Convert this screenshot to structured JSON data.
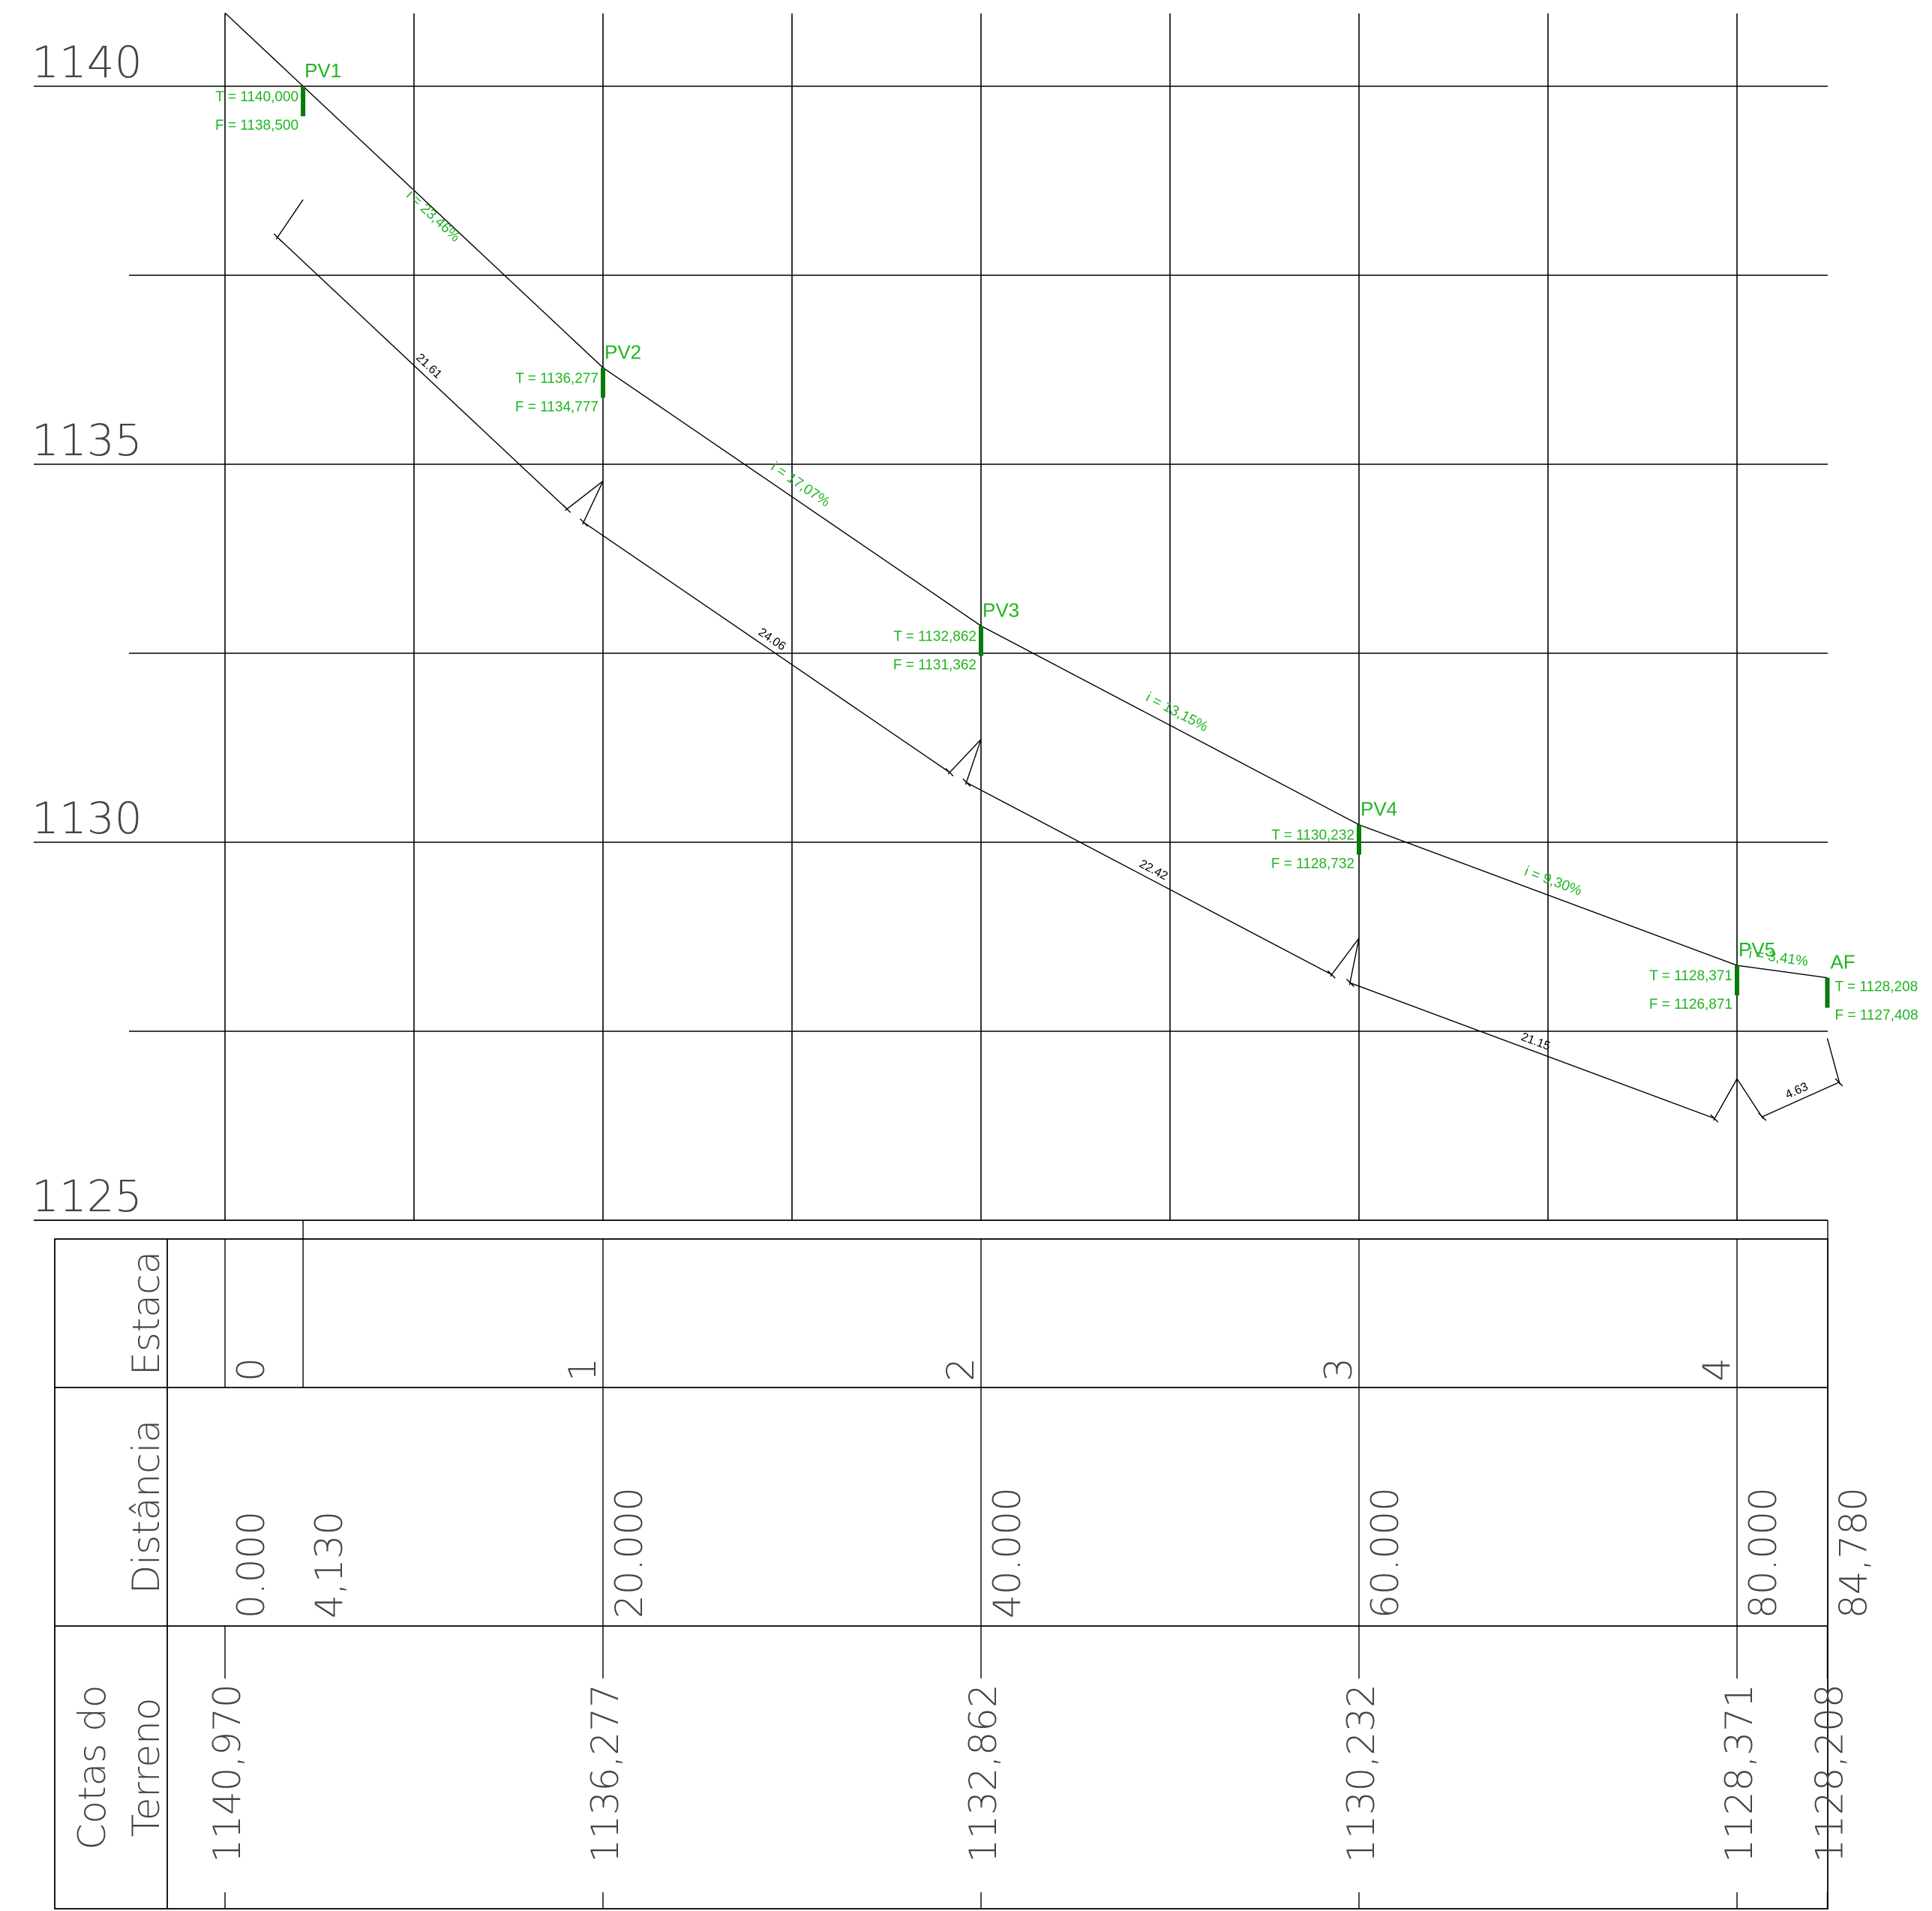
{
  "y_axis": {
    "labels": [
      "1140",
      "1135",
      "1130",
      "1125"
    ],
    "values": [
      1140,
      1135,
      1130,
      1125
    ]
  },
  "row_labels": {
    "estaca": "Estaca",
    "distancia": "Distância",
    "cotas_line1": "Cotas do",
    "cotas_line2": "Terreno"
  },
  "estacas": [
    {
      "label": "0",
      "distance": 0
    },
    {
      "label": "1",
      "distance": 20
    },
    {
      "label": "2",
      "distance": 40
    },
    {
      "label": "3",
      "distance": 60
    },
    {
      "label": "4",
      "distance": 80
    }
  ],
  "distance_labels": [
    {
      "text": "0.000",
      "x": 0
    },
    {
      "text": "4,130",
      "x": 4.13
    },
    {
      "text": "20.000",
      "x": 20
    },
    {
      "text": "40.000",
      "x": 40
    },
    {
      "text": "60.000",
      "x": 60
    },
    {
      "text": "80.000",
      "x": 80
    },
    {
      "text": "84,780",
      "x": 84.78
    }
  ],
  "terrain_labels": [
    {
      "text": "1140,970",
      "x": 0
    },
    {
      "text": "1136,277",
      "x": 20
    },
    {
      "text": "1132,862",
      "x": 40
    },
    {
      "text": "1130,232",
      "x": 60
    },
    {
      "text": "1128,371",
      "x": 80
    },
    {
      "text": "1128,208",
      "x": 84.78
    }
  ],
  "terrain_profile": [
    {
      "x": 0,
      "z": 1140.97
    },
    {
      "x": 4.13,
      "z": 1140.0
    },
    {
      "x": 20,
      "z": 1136.277
    },
    {
      "x": 40,
      "z": 1132.862
    },
    {
      "x": 60,
      "z": 1130.232
    },
    {
      "x": 80,
      "z": 1128.371
    },
    {
      "x": 84.78,
      "z": 1128.208
    }
  ],
  "nodes": [
    {
      "name": "PV1",
      "x": 4.13,
      "T": 1140.0,
      "F": 1138.5,
      "t_label": "T = 1140,000",
      "f_label": "F = 1138,500",
      "label_side": "left"
    },
    {
      "name": "PV2",
      "x": 20,
      "T": 1136.277,
      "F": 1134.777,
      "t_label": "T = 1136,277",
      "f_label": "F = 1134,777",
      "label_side": "left"
    },
    {
      "name": "PV3",
      "x": 40,
      "T": 1132.862,
      "F": 1131.362,
      "t_label": "T = 1132,862",
      "f_label": "F = 1131,362",
      "label_side": "left"
    },
    {
      "name": "PV4",
      "x": 60,
      "T": 1130.232,
      "F": 1128.732,
      "t_label": "T = 1130,232",
      "f_label": "F = 1128,732",
      "label_side": "left"
    },
    {
      "name": "PV5",
      "x": 80,
      "T": 1128.371,
      "F": 1126.871,
      "t_label": "T = 1128,371",
      "f_label": "F = 1126,871",
      "label_side": "left"
    },
    {
      "name": "AF",
      "x": 84.78,
      "T": 1128.208,
      "F": 1127.408,
      "t_label": "T = 1128,208",
      "f_label": "F = 1127,408",
      "label_side": "right"
    }
  ],
  "segments": [
    {
      "slope": "i = 23,46%",
      "length": "21.61"
    },
    {
      "slope": "i = 17,07%",
      "length": "24.06"
    },
    {
      "slope": "i = 13,15%",
      "length": "22.42"
    },
    {
      "slope": "i = 9,30%",
      "length": "21.15"
    },
    {
      "slope": "i = 3,41%",
      "length": "4.63"
    }
  ],
  "colors": {
    "green_text": "#1fb51f",
    "pv_marker": "#0a7a0a",
    "lines": "#000000",
    "axis_text": "#444444"
  }
}
